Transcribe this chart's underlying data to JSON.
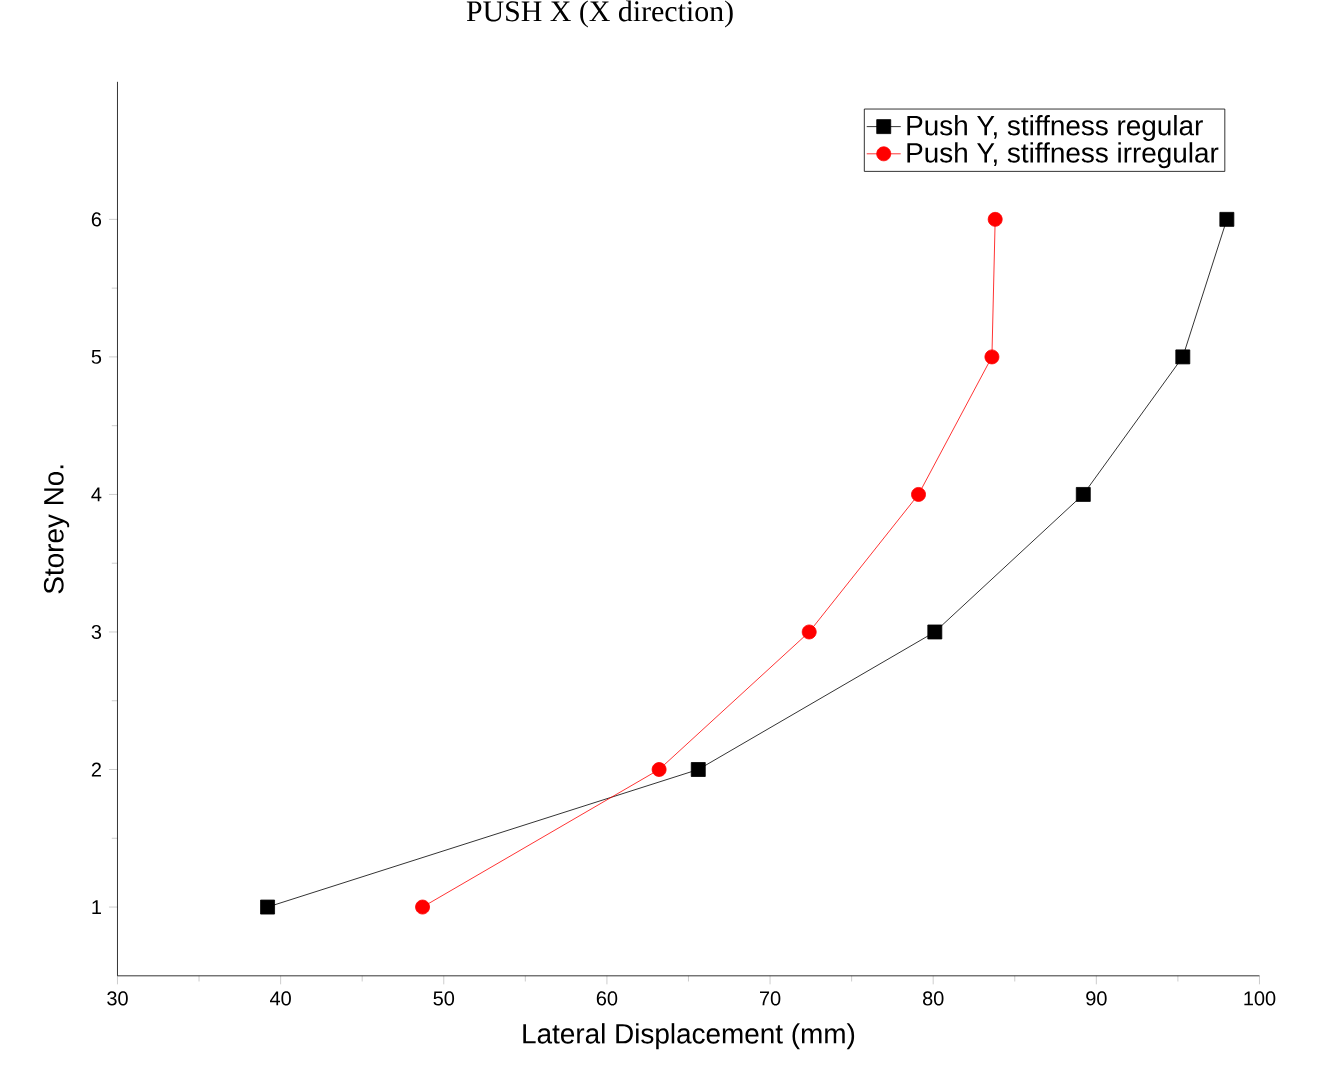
{
  "chart_data": {
    "type": "line",
    "title": "PUSH X (X direction)",
    "xlabel": "Lateral Displacement (mm)",
    "ylabel": "Storey No.",
    "series": [
      {
        "name": "Push Y, stiffness regular",
        "color": "#000000",
        "marker": "square",
        "x": [
          39.2,
          65.6,
          80.1,
          89.2,
          95.3,
          98.0
        ],
        "values": [
          1,
          2,
          3,
          4,
          5,
          6
        ]
      },
      {
        "name": "Push Y, stiffness irregular",
        "color": "#ff0000",
        "marker": "circle",
        "x": [
          48.7,
          63.2,
          72.4,
          79.1,
          83.6,
          83.8
        ],
        "values": [
          1,
          2,
          3,
          4,
          5,
          6
        ]
      }
    ],
    "xlim": [
      30,
      100
    ],
    "ylim": [
      0.5,
      7
    ],
    "xticks": [
      30,
      40,
      50,
      60,
      70,
      80,
      90,
      100
    ],
    "yticks": [
      1,
      2,
      3,
      4,
      5,
      6
    ],
    "grid": false,
    "legend": "top right",
    "line_style": "solid"
  }
}
